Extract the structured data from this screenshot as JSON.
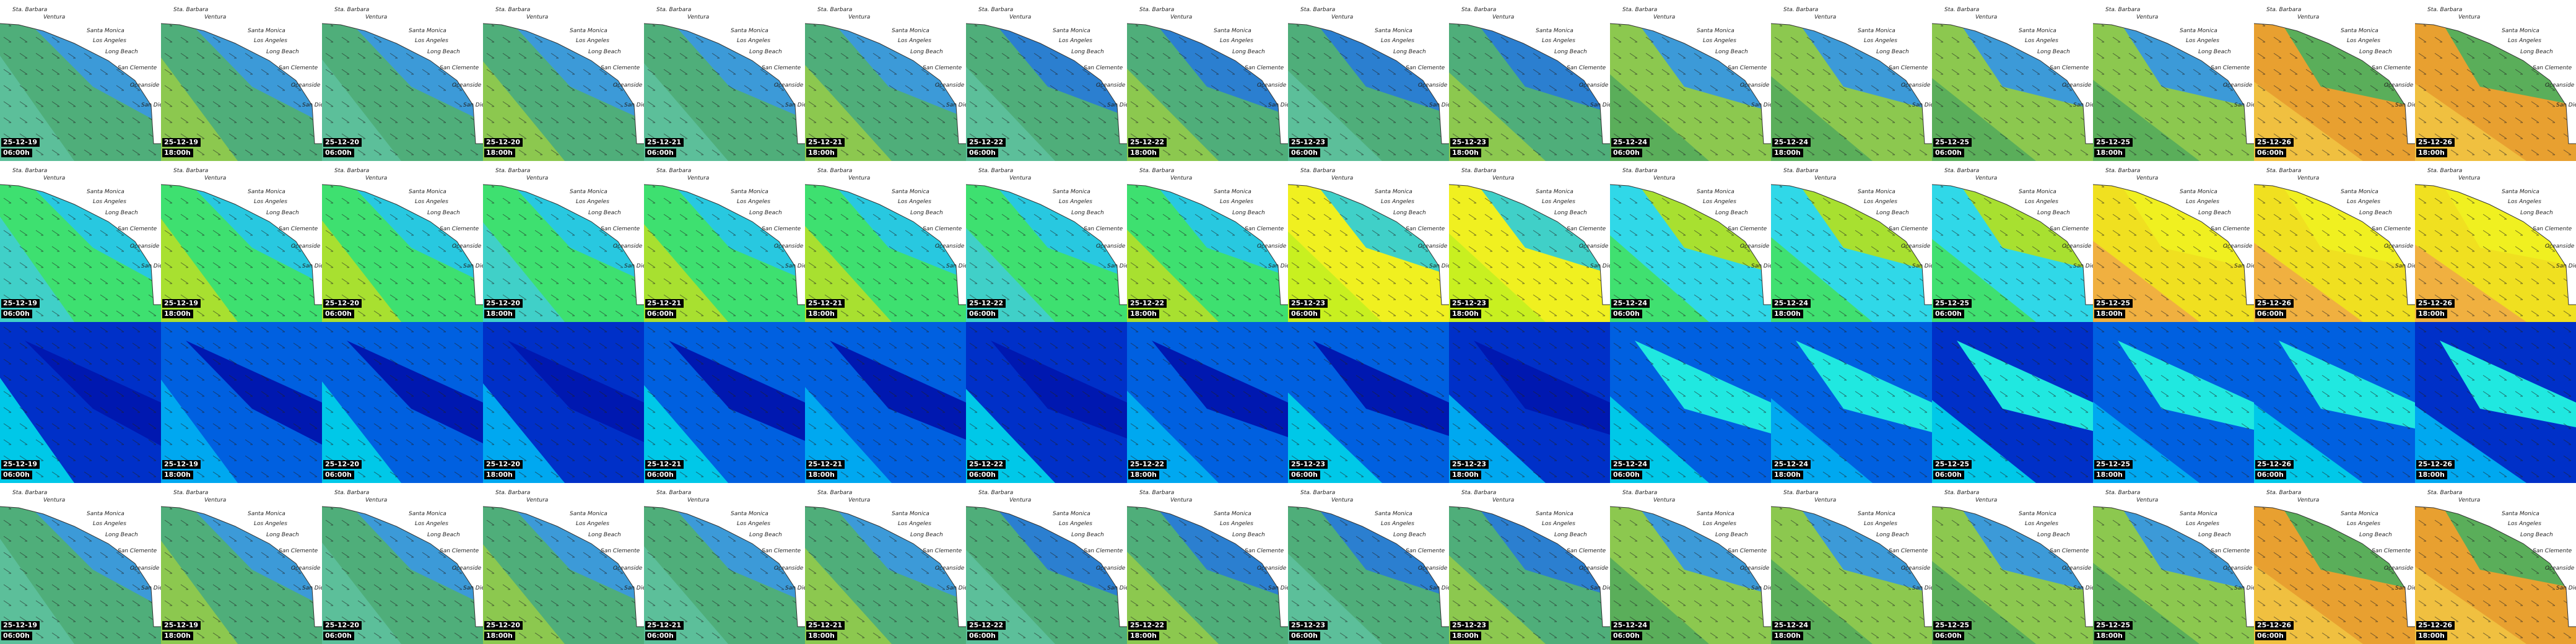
{
  "places": [
    "Sta. Barbara",
    "Ventura",
    "Santa Monica",
    "Los Angeles",
    "Long Beach",
    "San Clemente",
    "Oceanside",
    "San Diego"
  ],
  "tiles": [
    {
      "date": "25-12-19",
      "time": "06:00h"
    },
    {
      "date": "25-12-19",
      "time": "18:00h"
    },
    {
      "date": "25-12-20",
      "time": "06:00h"
    },
    {
      "date": "25-12-20",
      "time": "18:00h"
    },
    {
      "date": "25-12-21",
      "time": "06:00h"
    },
    {
      "date": "25-12-21",
      "time": "18:00h"
    },
    {
      "date": "25-12-22",
      "time": "06:00h"
    },
    {
      "date": "25-12-22",
      "time": "18:00h"
    },
    {
      "date": "25-12-23",
      "time": "06:00h"
    },
    {
      "date": "25-12-23",
      "time": "18:00h"
    },
    {
      "date": "25-12-24",
      "time": "06:00h"
    },
    {
      "date": "25-12-24",
      "time": "18:00h"
    },
    {
      "date": "25-12-25",
      "time": "06:00h"
    },
    {
      "date": "25-12-25",
      "time": "18:00h"
    },
    {
      "date": "25-12-26",
      "time": "06:00h"
    },
    {
      "date": "25-12-26",
      "time": "18:00h"
    }
  ]
}
